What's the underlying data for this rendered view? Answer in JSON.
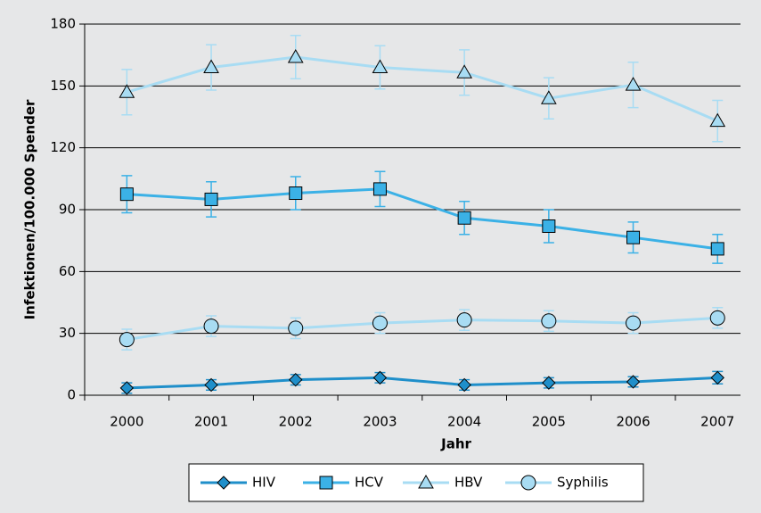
{
  "chart_data": {
    "type": "line",
    "x_label": "Jahr",
    "y_label": "Infektionen/100.000 Spender",
    "categories": [
      "2000",
      "2001",
      "2002",
      "2003",
      "2004",
      "2005",
      "2006",
      "2007"
    ],
    "ylim": [
      0,
      180
    ],
    "yticks": [
      0,
      30,
      60,
      90,
      120,
      150,
      180
    ],
    "grid": true,
    "series": [
      {
        "name": "HIV",
        "color": "#1f8fca",
        "marker": "diamond",
        "values": [
          3.5,
          5,
          7.5,
          8.5,
          5,
          6,
          6.5,
          8.5
        ],
        "errors": [
          2.5,
          2.5,
          2.5,
          2.5,
          2.5,
          2.5,
          2.5,
          3
        ]
      },
      {
        "name": "HCV",
        "color": "#3bb1e6",
        "marker": "square",
        "values": [
          97.5,
          95,
          98,
          100,
          86,
          82,
          76.5,
          71
        ],
        "errors": [
          9,
          8.5,
          8,
          8.5,
          8,
          8,
          7.5,
          7
        ]
      },
      {
        "name": "HBV",
        "color": "#a8dcf3",
        "marker": "triangle",
        "values": [
          147,
          159,
          164,
          159,
          156.5,
          144,
          150.5,
          133
        ],
        "errors": [
          11,
          11,
          10.5,
          10.5,
          11,
          10,
          11,
          10
        ]
      },
      {
        "name": "Syphilis",
        "color": "#a8dcf3",
        "marker": "circle",
        "values": [
          27,
          33.5,
          32.5,
          35,
          36.5,
          36,
          35,
          37.5
        ],
        "errors": [
          5,
          5,
          5,
          5,
          5,
          5,
          5,
          5
        ]
      }
    ]
  }
}
